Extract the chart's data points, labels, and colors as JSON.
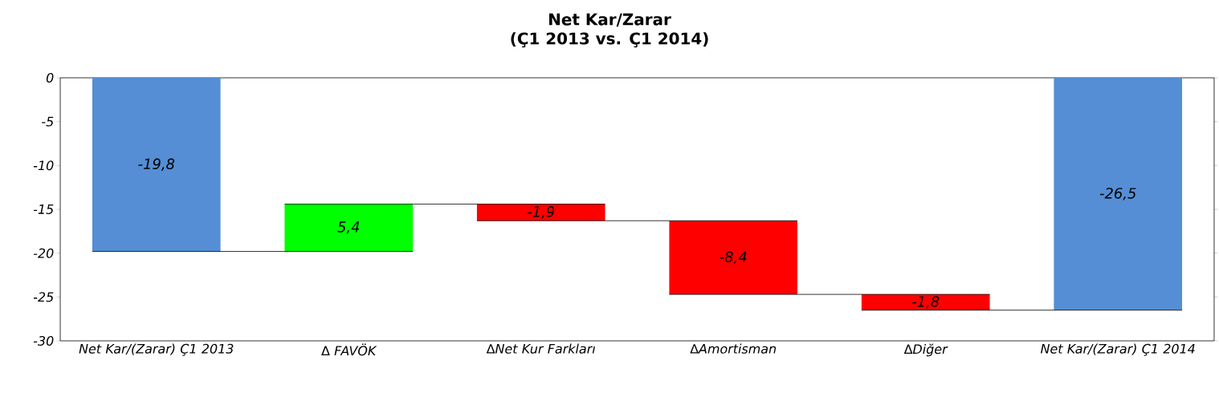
{
  "chart_data": {
    "type": "bar",
    "title": "Net Kar/Zarar",
    "subtitle": "(Ç1 2013 vs. Ç1 2014)",
    "categories": [
      "Net Kar/(Zarar) Ç1 2013",
      "∆ FAVÖK",
      "∆Net Kur Farkları",
      "∆Amortisman",
      "∆Diğer",
      "Net Kar/(Zarar) Ç1 2014"
    ],
    "values": [
      -19.8,
      5.4,
      -1.9,
      -8.4,
      -1.8,
      -26.5
    ],
    "base": [
      0,
      -19.8,
      -14.4,
      -16.3,
      -24.7,
      0
    ],
    "colors": [
      "#558ed5",
      "#00ff00",
      "#ff0000",
      "#ff0000",
      "#ff0000",
      "#558ed5"
    ],
    "value_labels": [
      "-19,8",
      "5,4",
      "-1,9",
      "-8,4",
      "-1,8",
      "-26,5"
    ],
    "ylim": [
      -30,
      0
    ],
    "yticks": [
      0,
      -5,
      -10,
      -15,
      -20,
      -25,
      -30
    ],
    "grid": false
  }
}
